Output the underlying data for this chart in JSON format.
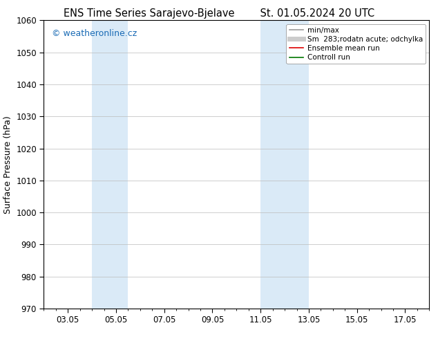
{
  "title_left": "ENS Time Series Sarajevo-Bjelave",
  "title_right": "St. 01.05.2024 20 UTC",
  "ylabel": "Surface Pressure (hPa)",
  "ylim": [
    970,
    1060
  ],
  "yticks": [
    970,
    980,
    990,
    1000,
    1010,
    1020,
    1030,
    1040,
    1050,
    1060
  ],
  "xlim": [
    2.0,
    18.0
  ],
  "xtick_positions": [
    3,
    5,
    7,
    9,
    11,
    13,
    15,
    17
  ],
  "xtick_labels": [
    "03.05",
    "05.05",
    "07.05",
    "09.05",
    "11.05",
    "13.05",
    "15.05",
    "17.05"
  ],
  "shaded_regions": [
    {
      "xstart": 4.0,
      "xend": 5.5
    },
    {
      "xstart": 11.0,
      "xend": 13.0
    }
  ],
  "shaded_color": "#daeaf7",
  "watermark": "© weatheronline.cz",
  "watermark_color": "#1a6bb5",
  "legend_entries": [
    {
      "label": "min/max",
      "color": "#999999",
      "lw": 1.2
    },
    {
      "label": "Sm  283;rodatn acute; odchylka",
      "color": "#cccccc",
      "lw": 5
    },
    {
      "label": "Ensemble mean run",
      "color": "#dd0000",
      "lw": 1.2
    },
    {
      "label": "Controll run",
      "color": "#007700",
      "lw": 1.2
    }
  ],
  "background_color": "#ffffff",
  "grid_color": "#bbbbbb",
  "title_fontsize": 10.5,
  "ylabel_fontsize": 9,
  "tick_fontsize": 8.5,
  "legend_fontsize": 7.5,
  "watermark_fontsize": 9
}
